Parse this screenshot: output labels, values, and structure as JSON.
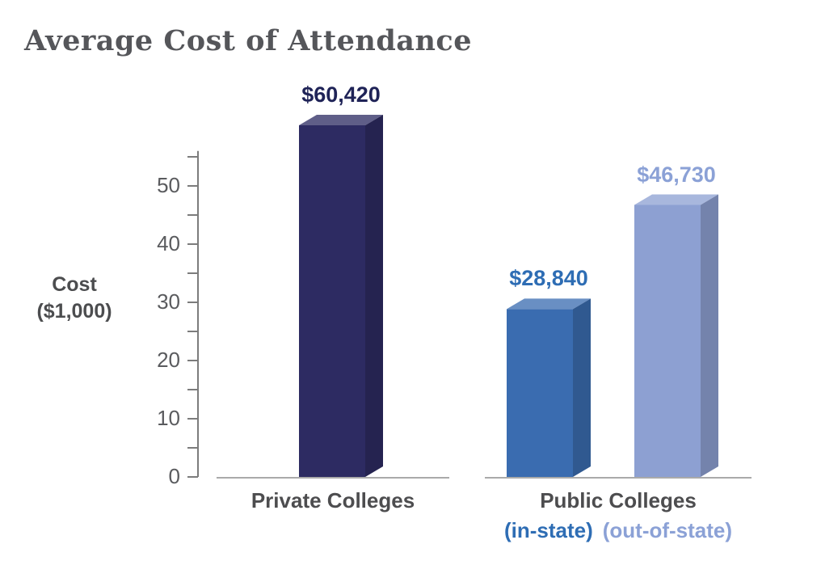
{
  "chart_data": {
    "type": "bar",
    "title": "Average Cost of Attendance",
    "ylabel": "Cost ($1,000)",
    "ylabel_lines": [
      "Cost",
      "($1,000)"
    ],
    "y_ticks": [
      0,
      10,
      20,
      30,
      40,
      50
    ],
    "y_minor_tick_step": 5,
    "ylim": [
      0,
      56
    ],
    "grid": false,
    "legend_position": "none",
    "values_unit": "USD",
    "style": "3d-extruded-bars",
    "groups": [
      {
        "label": "Private Colleges",
        "bars": [
          {
            "series": "Private Colleges",
            "value": 60420,
            "value_thousands": 60.42,
            "label": "$60,420",
            "color": "#2d2b62",
            "label_color": "#1f2357"
          }
        ]
      },
      {
        "label": "Public Colleges",
        "sublabels": [
          {
            "text": "(in-state)",
            "color": "#2e6db4"
          },
          {
            "text": "(out-of-state)",
            "color": "#8ba1d6"
          }
        ],
        "bars": [
          {
            "series": "Public Colleges (in-state)",
            "value": 28840,
            "value_thousands": 28.84,
            "label": "$28,840",
            "color": "#3a6cb0",
            "label_color": "#2e6db4"
          },
          {
            "series": "Public Colleges (out-of-state)",
            "value": 46730,
            "value_thousands": 46.73,
            "label": "$46,730",
            "color": "#8da0d2",
            "label_color": "#8ba1d6"
          }
        ]
      }
    ]
  }
}
